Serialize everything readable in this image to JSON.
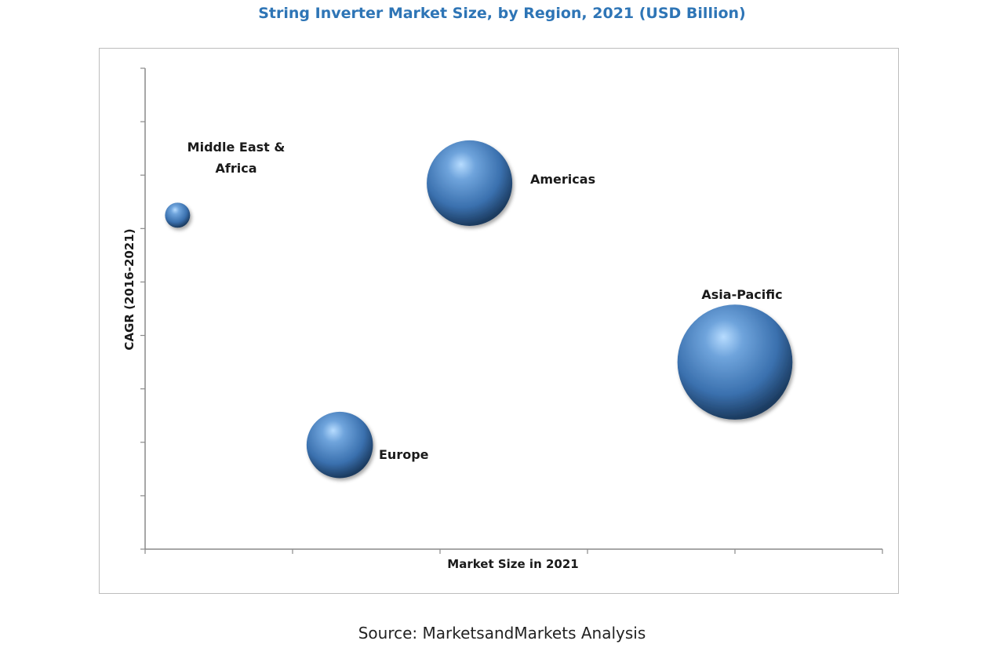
{
  "chart_data": {
    "type": "scatter",
    "title": "String Inverter Market Size, by Region, 2021 (USD Billion)",
    "xlabel": "Market Size in 2021",
    "ylabel": "CAGR (2016-2021)",
    "xlim": [
      0,
      5
    ],
    "ylim": [
      0,
      9
    ],
    "grid": false,
    "series": [
      {
        "name": "Middle East & Africa",
        "x": 0.22,
        "y": 6.25,
        "size": 0.17
      },
      {
        "name": "Americas",
        "x": 2.2,
        "y": 6.85,
        "size": 0.58
      },
      {
        "name": "Asia-Pacific",
        "x": 4.0,
        "y": 3.5,
        "size": 0.78
      },
      {
        "name": "Europe",
        "x": 1.32,
        "y": 1.95,
        "size": 0.45
      }
    ],
    "labels": {
      "mea_line1": "Middle East &",
      "mea_line2": "Africa",
      "americas": "Americas",
      "asia_pacific": "Asia-Pacific",
      "europe": "Europe"
    },
    "colors": {
      "bubble_light": "#a8d0f5",
      "bubble_mid": "#4f88c8",
      "bubble_dark": "#1d3f66",
      "title": "#2e75b6"
    }
  },
  "source": "Source: MarketsandMarkets Analysis"
}
